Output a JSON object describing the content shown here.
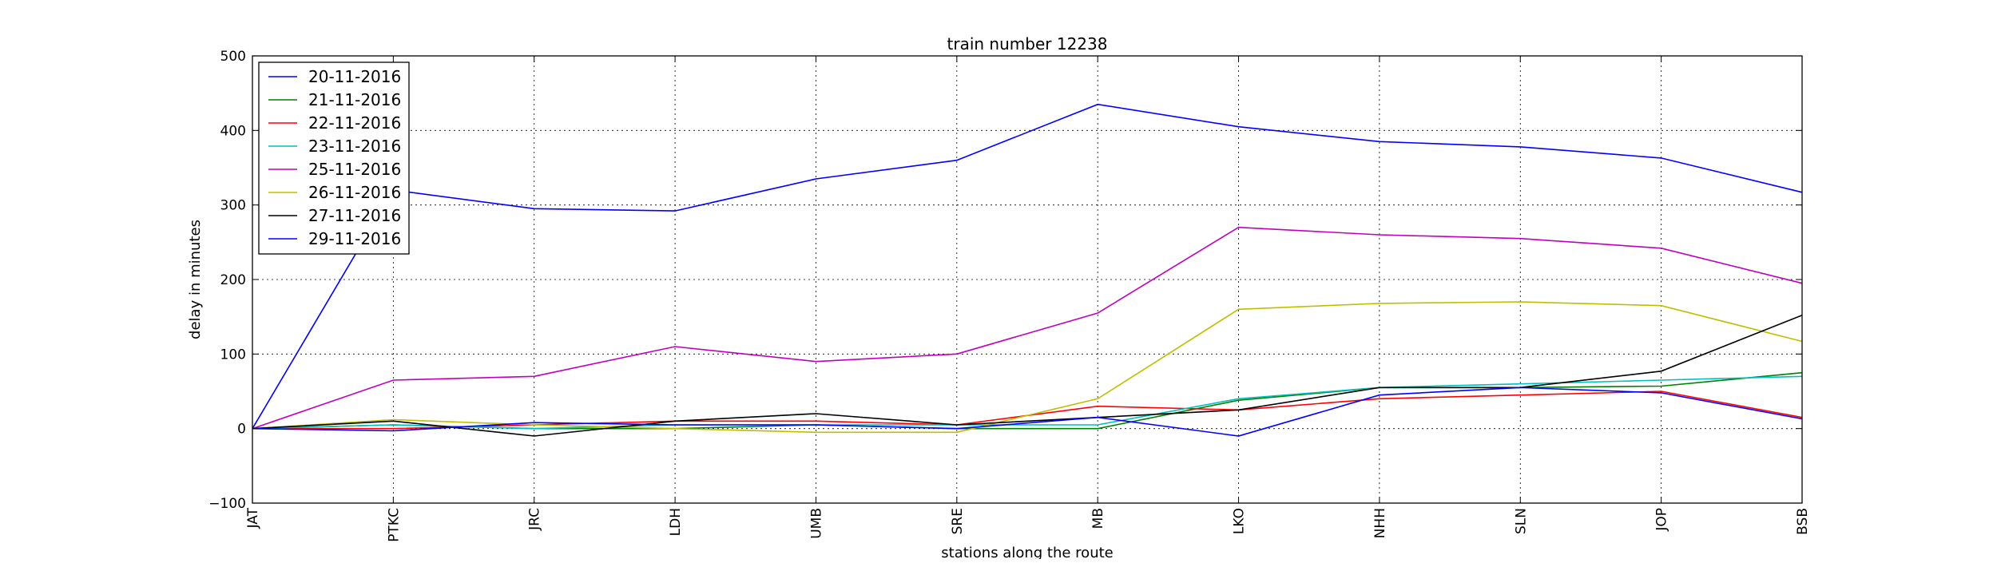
{
  "chart_data": {
    "type": "line",
    "title": "train number 12238",
    "xlabel": "stations along the route",
    "ylabel": "delay in minutes",
    "ylim": [
      -100,
      500
    ],
    "yticks": [
      -100,
      0,
      100,
      200,
      300,
      400,
      500
    ],
    "grid": true,
    "legend_position": "top-left",
    "categories": [
      "JAT",
      "PTKC",
      "JRC",
      "LDH",
      "UMB",
      "SRE",
      "MB",
      "LKO",
      "NHH",
      "SLN",
      "JOP",
      "BSB"
    ],
    "series": [
      {
        "name": "20-11-2016",
        "color": "#0000ff",
        "values": [
          0,
          320,
          295,
          292,
          335,
          360,
          435,
          405,
          385,
          378,
          363,
          317
        ]
      },
      {
        "name": "21-11-2016",
        "color": "#008000",
        "values": [
          0,
          5,
          0,
          0,
          5,
          0,
          0,
          38,
          55,
          55,
          57,
          75
        ]
      },
      {
        "name": "22-11-2016",
        "color": "#ff0000",
        "values": [
          0,
          0,
          5,
          10,
          10,
          5,
          30,
          25,
          40,
          45,
          50,
          15
        ]
      },
      {
        "name": "23-11-2016",
        "color": "#00bfbf",
        "values": [
          0,
          5,
          0,
          5,
          5,
          5,
          5,
          40,
          55,
          60,
          65,
          70
        ]
      },
      {
        "name": "25-11-2016",
        "color": "#bf00bf",
        "values": [
          0,
          65,
          70,
          110,
          90,
          100,
          155,
          270,
          260,
          255,
          242,
          195
        ]
      },
      {
        "name": "26-11-2016",
        "color": "#bfbf00",
        "values": [
          0,
          12,
          5,
          0,
          -5,
          -5,
          40,
          160,
          168,
          170,
          165,
          117
        ]
      },
      {
        "name": "27-11-2016",
        "color": "#000000",
        "values": [
          0,
          10,
          -10,
          10,
          20,
          5,
          15,
          25,
          55,
          55,
          77,
          152
        ]
      },
      {
        "name": "29-11-2016",
        "color": "#0000ff",
        "values": [
          0,
          -3,
          8,
          5,
          5,
          0,
          15,
          -10,
          45,
          55,
          48,
          13
        ]
      }
    ]
  }
}
